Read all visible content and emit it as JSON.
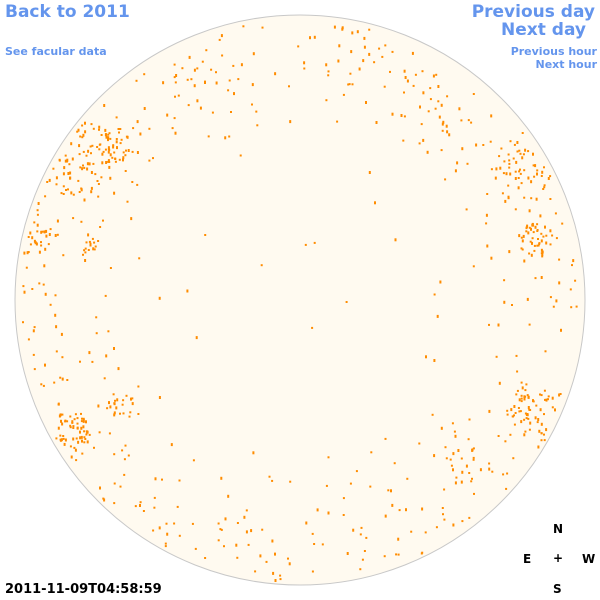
{
  "nav": {
    "back": "Back to 2011",
    "facular": "See facular data",
    "prev_day": "Previous day",
    "next_day": "Next day",
    "prev_hour": "Previous hour",
    "next_hour": "Next hour"
  },
  "compass": {
    "north": "N",
    "east": "E",
    "center": "+",
    "west": "W",
    "south": "S"
  },
  "timestamp": "2011-11-09T04:58:59",
  "colors": {
    "link": "#6495ed",
    "disk_fill": "#fffaf0",
    "disk_stroke": "#c8c8c8",
    "speckle": "#ff8c00"
  }
}
